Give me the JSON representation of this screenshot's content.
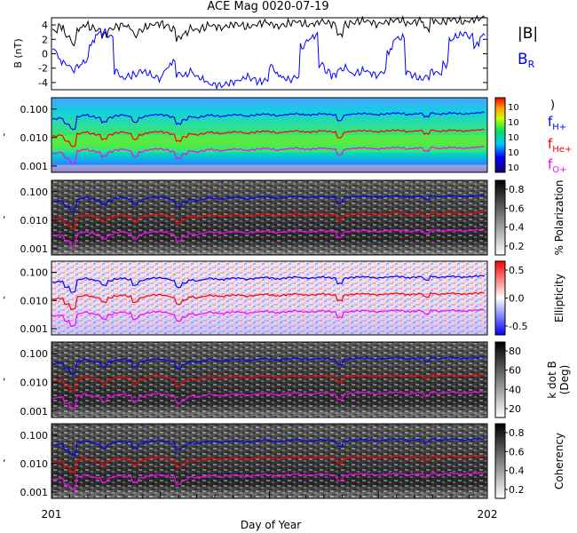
{
  "title": "ACE Mag 0020-07-19",
  "colors": {
    "b_total": "#000000",
    "b_r": "#0000ff",
    "f_h": "#0000ff",
    "f_he": "#ff0000",
    "f_o": "#ff00ff"
  },
  "chart_data": [
    {
      "type": "line",
      "panel": "field",
      "ylabel": "B (nT)",
      "yticks": [
        "4",
        "2",
        "0",
        "-2",
        "-4"
      ],
      "ylim": [
        -5,
        5
      ],
      "legend": {
        "b_total": "|B|",
        "b_r": "B",
        "b_r_sub": "R"
      },
      "series": [
        {
          "key": "b_total",
          "values": [
            3.2,
            3.8,
            2.5,
            1.5,
            3.5,
            4,
            3.6,
            3.3,
            2.6,
            3.4,
            3.8,
            4,
            3.7,
            2.6,
            3.3,
            3.8,
            4.1,
            4.2,
            3.9,
            3.4,
            2.2,
            2.8,
            3.5,
            3.3,
            3.6,
            4,
            3.8,
            3.6,
            3.9,
            4.1,
            4,
            3.7,
            3.9,
            4.2,
            4.4,
            4.1,
            3.8,
            4,
            4.3,
            4.5,
            4.2,
            4,
            4.2,
            4.5,
            4.3,
            4.1,
            2.6,
            4,
            4.3,
            4.5,
            4.6,
            4.4,
            4.1,
            4.3,
            4.5,
            4.7,
            4.6,
            4.2,
            4.4,
            4.6,
            3.5,
            4.7,
            4.3,
            4.5,
            4.8,
            4.6,
            4.4,
            4.6,
            4.8,
            5
          ]
        },
        {
          "key": "b_r",
          "values": [
            0.5,
            -1,
            -1.5,
            -2.2,
            -1.6,
            -1,
            1.5,
            2.8,
            3,
            2.4,
            -2.5,
            -3.4,
            -3.1,
            -2.9,
            -2.4,
            -2.7,
            -3.2,
            -3.4,
            -2.1,
            -1.2,
            -2.8,
            -3,
            -2.5,
            -3.2,
            -3.6,
            -4.2,
            -4.3,
            -4.4,
            -4.1,
            -3.9,
            -3.6,
            -3.2,
            -3.5,
            -3.9,
            -3.7,
            -1.8,
            -2.9,
            -3.4,
            -3.6,
            -3.2,
            1,
            2,
            2.5,
            -1.5,
            -2.5,
            -3,
            -2.2,
            -2,
            -2.8,
            -2.6,
            -2.3,
            -2.7,
            -3,
            -2.5,
            0.4,
            2.1,
            2.2,
            -2.6,
            -3.1,
            -3.5,
            -3.2,
            -2.5,
            -2.7,
            -1.5,
            2,
            2.5,
            2.8,
            2.4,
            1.2,
            2.5
          ]
        }
      ]
    },
    {
      "type": "heatmap",
      "panel": "power",
      "yticks": [
        "0.100",
        "0.010",
        "0.001"
      ],
      "colorbar": {
        "labels": [
          "10",
          "10",
          "10",
          "10",
          "10"
        ],
        "exponent_note": ")"
      },
      "legend": {
        "f_h": "f",
        "f_h_sub": "H+",
        "f_he": "f",
        "f_he_sub": "He+",
        "f_o": "f",
        "f_o_sub": "O+"
      }
    },
    {
      "type": "heatmap",
      "panel": "polarization",
      "yticks": [
        "0.100",
        "0.010",
        "0.001"
      ],
      "colorbar": {
        "label": "% Polarization",
        "ticks": [
          "0.8",
          "0.6",
          "0.4",
          "0.2"
        ]
      }
    },
    {
      "type": "heatmap",
      "panel": "ellipticity",
      "yticks": [
        "0.100",
        "0.010",
        "0.001"
      ],
      "colorbar": {
        "label": "Ellipticity",
        "ticks": [
          "0.5",
          "0.0",
          "-0.5"
        ]
      }
    },
    {
      "type": "heatmap",
      "panel": "kdotb",
      "yticks": [
        "0.100",
        "0.010",
        "0.001"
      ],
      "colorbar": {
        "label": "k dot B",
        "label2": "(Deg)",
        "ticks": [
          "80",
          "60",
          "40",
          "20"
        ]
      }
    },
    {
      "type": "heatmap",
      "panel": "coherency",
      "yticks": [
        "0.100",
        "0.010",
        "0.001"
      ],
      "colorbar": {
        "label": "Coherency",
        "ticks": [
          "0.8",
          "0.6",
          "0.4",
          "0.2"
        ]
      }
    }
  ],
  "gyro": {
    "f_h": [
      0.045,
      0.048,
      0.03,
      0.02,
      0.055,
      0.062,
      0.055,
      0.05,
      0.035,
      0.05,
      0.058,
      0.062,
      0.056,
      0.035,
      0.05,
      0.058,
      0.063,
      0.064,
      0.06,
      0.052,
      0.03,
      0.042,
      0.054,
      0.05,
      0.055,
      0.062,
      0.058,
      0.055,
      0.06,
      0.063,
      0.062,
      0.056,
      0.06,
      0.064,
      0.067,
      0.063,
      0.058,
      0.062,
      0.066,
      0.069,
      0.064,
      0.062,
      0.064,
      0.069,
      0.066,
      0.063,
      0.04,
      0.062,
      0.066,
      0.069,
      0.07,
      0.067,
      0.063,
      0.066,
      0.069,
      0.072,
      0.07,
      0.064,
      0.067,
      0.07,
      0.054,
      0.072,
      0.066,
      0.069,
      0.073,
      0.07,
      0.067,
      0.07,
      0.073,
      0.076
    ],
    "x_axis": {
      "label": "Day of Year",
      "start": "201",
      "end": "202"
    }
  }
}
